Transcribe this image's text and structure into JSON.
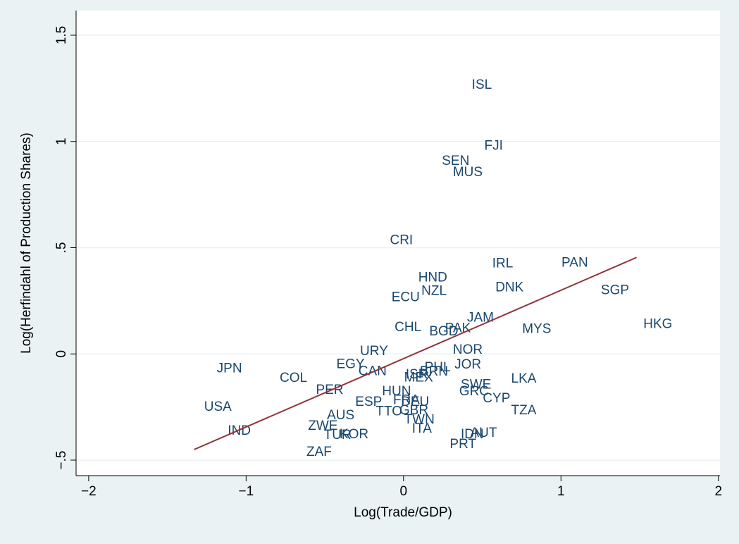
{
  "chart_data": {
    "type": "scatter",
    "x_label": "Log(Trade/GDP)",
    "y_label": "Log(Herfindahl of Production Shares)",
    "labels": [
      "ISL",
      "FJI",
      "SEN",
      "MUS",
      "CRI",
      "IRL",
      "PAN",
      "HND",
      "NZL",
      "DNK",
      "SGP",
      "ECU",
      "JAM",
      "HKG",
      "CHL",
      "MYS",
      "PAK",
      "BGD",
      "URY",
      "NOR",
      "JPN",
      "EGY",
      "JOR",
      "PHL",
      "CAN",
      "ISR",
      "BRN",
      "MEX",
      "COL",
      "LKA",
      "SWE",
      "PER",
      "HUN",
      "GRC",
      "CYP",
      "FRA",
      "DEU",
      "ESP",
      "USA",
      "TTO",
      "GBR",
      "TZA",
      "AUS",
      "TWN",
      "ZWE",
      "ITA",
      "IND",
      "AUT",
      "IDN",
      "TUR",
      "KOR",
      "PRT",
      "ZAF"
    ],
    "x": [
      0.42,
      0.5,
      0.23,
      0.3,
      -0.1,
      0.55,
      0.99,
      0.08,
      0.1,
      0.57,
      1.24,
      -0.09,
      0.39,
      1.51,
      -0.07,
      0.74,
      0.25,
      0.15,
      -0.29,
      0.3,
      -1.2,
      -0.44,
      0.31,
      0.12,
      -0.3,
      0.0,
      0.09,
      -0.01,
      -0.8,
      0.67,
      0.35,
      -0.57,
      -0.15,
      0.34,
      0.49,
      -0.08,
      -0.03,
      -0.32,
      -1.28,
      -0.19,
      -0.04,
      0.67,
      -0.5,
      -0.01,
      -0.62,
      0.04,
      -1.13,
      0.41,
      0.35,
      -0.52,
      -0.42,
      0.28,
      -0.63
    ],
    "y": [
      1.265,
      0.977,
      0.907,
      0.854,
      0.533,
      0.424,
      0.427,
      0.358,
      0.295,
      0.311,
      0.298,
      0.265,
      0.169,
      0.139,
      0.123,
      0.116,
      0.119,
      0.103,
      0.01,
      0.017,
      -0.07,
      -0.05,
      -0.053,
      -0.066,
      -0.083,
      -0.099,
      -0.086,
      -0.113,
      -0.116,
      -0.119,
      -0.146,
      -0.172,
      -0.179,
      -0.179,
      -0.212,
      -0.219,
      -0.228,
      -0.228,
      -0.252,
      -0.272,
      -0.268,
      -0.268,
      -0.291,
      -0.311,
      -0.341,
      -0.354,
      -0.364,
      -0.374,
      -0.381,
      -0.384,
      -0.381,
      -0.427,
      -0.464
    ],
    "color": "#1a476f",
    "fit": {
      "x": [
        -1.33,
        1.48
      ],
      "y": [
        -0.45,
        0.454
      ],
      "color": "#90353b"
    },
    "xlim": [
      -2.08,
      2.01
    ],
    "ylim": [
      -0.573,
      1.616
    ],
    "xticks": [
      {
        "value": -2,
        "label": "−2"
      },
      {
        "value": -1,
        "label": "−1"
      },
      0,
      1,
      2
    ],
    "yticks": [
      {
        "value": -0.5,
        "label": "−.5"
      },
      0,
      {
        "value": 0.5,
        "label": ".5"
      },
      1,
      1.5
    ],
    "grid": true
  }
}
